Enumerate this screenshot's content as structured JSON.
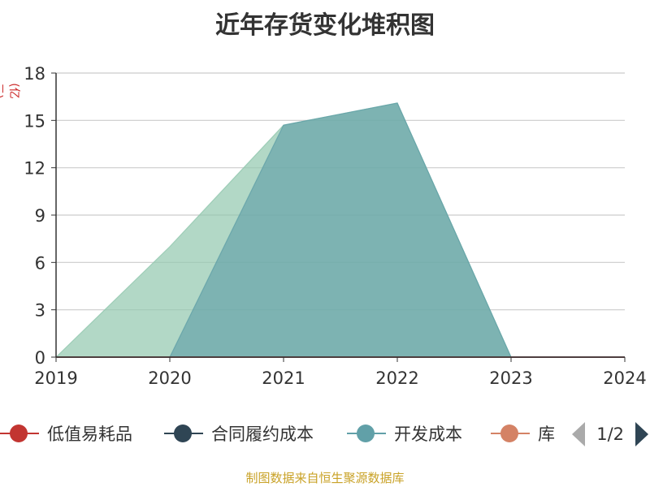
{
  "title": "近年存货变化堆积图",
  "y_unit": "(亿元)",
  "source": "制图数据来自恒生聚源数据库",
  "legend_pager": {
    "text": "1/2"
  },
  "legend": [
    {
      "label": "低值易耗品",
      "color": "#c23531"
    },
    {
      "label": "合同履约成本",
      "color": "#2f4554"
    },
    {
      "label": "开发成本",
      "color": "#61a0a8"
    },
    {
      "label": "库",
      "color": "#d48265"
    }
  ],
  "chart_data": {
    "type": "area",
    "title": "近年存货变化堆积图",
    "ylabel": "(亿元)",
    "x": [
      "2019",
      "2020",
      "2021",
      "2022",
      "2023",
      "2024"
    ],
    "y_ticks": [
      "0",
      "3",
      "6",
      "9",
      "12",
      "15",
      "18"
    ],
    "ylim": [
      0,
      18
    ],
    "grid": true,
    "legend_position": "bottom",
    "series": [
      {
        "name": "低值易耗品",
        "color": "#c23531",
        "values": [
          0,
          0,
          0,
          0,
          0,
          0
        ]
      },
      {
        "name": "合同履约成本",
        "color": "#2f4554",
        "values": [
          0,
          0,
          0,
          0,
          0,
          0
        ]
      },
      {
        "name": "开发成本",
        "color": "#61a0a8",
        "values": [
          0,
          0,
          14.7,
          16.1,
          0,
          0
        ]
      },
      {
        "name": "库存商品",
        "color": "#91c7ae",
        "values": [
          0,
          7.0,
          14.7,
          16.1,
          0,
          0
        ]
      }
    ]
  }
}
